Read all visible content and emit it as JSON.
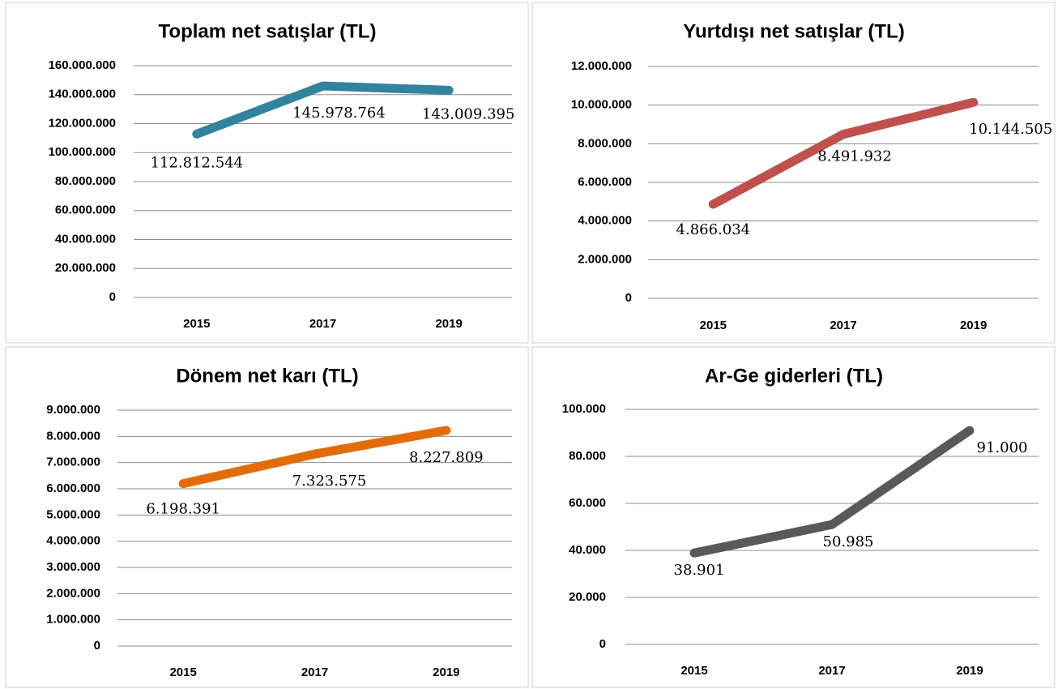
{
  "chart_data": [
    {
      "type": "line",
      "title": "Toplam net satışlar (TL)",
      "categories": [
        "2015",
        "2017",
        "2019"
      ],
      "series": [
        {
          "name": "Toplam net satışlar",
          "color": "#31849b",
          "values": [
            112812544,
            145978764,
            143009395
          ],
          "value_labels": [
            "112.812.544",
            "145.978.764",
            "143.009.395"
          ]
        }
      ],
      "ylim": [
        0,
        160000000
      ],
      "yticks": [
        0,
        {
          "value": 20000000,
          "label": "20.000.000"
        },
        {
          "value": 40000000,
          "label": "40.000.000"
        },
        {
          "value": 60000000,
          "label": "60.000.000"
        },
        {
          "value": 80000000,
          "label": "80.000.000"
        },
        {
          "value": 100000000,
          "label": "100.000.000"
        },
        {
          "value": 120000000,
          "label": "120.000.000"
        },
        {
          "value": 140000000,
          "label": "140.000.000"
        },
        {
          "value": 160000000,
          "label": "160.000.000"
        }
      ],
      "grid": true
    },
    {
      "type": "line",
      "title": "Yurtdışı net satışlar (TL)",
      "categories": [
        "2015",
        "2017",
        "2019"
      ],
      "series": [
        {
          "name": "Yurtdışı net satışlar",
          "color": "#c0504d",
          "values": [
            4866034,
            8491932,
            10144505
          ],
          "value_labels": [
            "4.866.034",
            "8.491.932",
            "10.144.505"
          ]
        }
      ],
      "ylim": [
        0,
        12000000
      ],
      "yticks": [
        0,
        {
          "value": 2000000,
          "label": "2.000.000"
        },
        {
          "value": 4000000,
          "label": "4.000.000"
        },
        {
          "value": 6000000,
          "label": "6.000.000"
        },
        {
          "value": 8000000,
          "label": "8.000.000"
        },
        {
          "value": 10000000,
          "label": "10.000.000"
        },
        {
          "value": 12000000,
          "label": "12.000.000"
        }
      ],
      "grid": true
    },
    {
      "type": "line",
      "title": "Dönem net karı (TL)",
      "categories": [
        "2015",
        "2017",
        "2019"
      ],
      "series": [
        {
          "name": "Dönem net karı",
          "color": "#e36c0a",
          "values": [
            6198391,
            7323575,
            8227809
          ],
          "value_labels": [
            "6.198.391",
            "7.323.575",
            "8.227.809"
          ]
        }
      ],
      "ylim": [
        0,
        9000000
      ],
      "yticks": [
        0,
        {
          "value": 1000000,
          "label": "1.000.000"
        },
        {
          "value": 2000000,
          "label": "2.000.000"
        },
        {
          "value": 3000000,
          "label": "3.000.000"
        },
        {
          "value": 4000000,
          "label": "4.000.000"
        },
        {
          "value": 5000000,
          "label": "5.000.000"
        },
        {
          "value": 6000000,
          "label": "6.000.000"
        },
        {
          "value": 7000000,
          "label": "7.000.000"
        },
        {
          "value": 8000000,
          "label": "8.000.000"
        },
        {
          "value": 9000000,
          "label": "9.000.000"
        }
      ],
      "grid": true
    },
    {
      "type": "line",
      "title": "Ar-Ge giderleri (TL)",
      "categories": [
        "2015",
        "2017",
        "2019"
      ],
      "series": [
        {
          "name": "Ar-Ge giderleri",
          "color": "#595959",
          "values": [
            38901,
            50985,
            91000
          ],
          "value_labels": [
            "38.901",
            "50.985",
            "91.000"
          ]
        }
      ],
      "ylim": [
        0,
        100000
      ],
      "yticks": [
        0,
        {
          "value": 20000,
          "label": "20.000"
        },
        {
          "value": 40000,
          "label": "40.000"
        },
        {
          "value": 60000,
          "label": "60.000"
        },
        {
          "value": 80000,
          "label": "80.000"
        },
        {
          "value": 100000,
          "label": "100.000"
        }
      ],
      "grid": true
    }
  ]
}
